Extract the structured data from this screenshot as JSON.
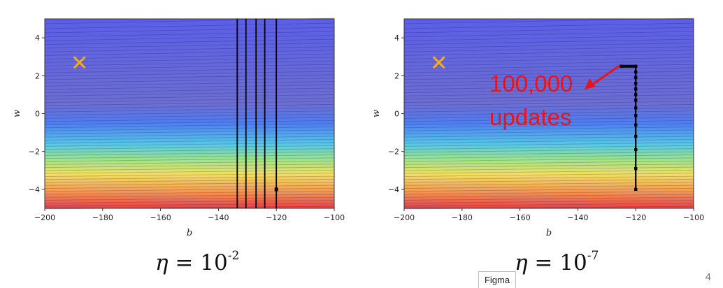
{
  "chart_data": [
    {
      "type": "contour",
      "xlabel": "b",
      "ylabel": "w",
      "xlim": [
        -200,
        -100
      ],
      "ylim": [
        -5,
        5
      ],
      "xticks": [
        -200,
        -180,
        -160,
        -140,
        -120,
        -100
      ],
      "yticks": [
        -4,
        -2,
        0,
        2,
        4
      ],
      "optimum_marker": {
        "b": -188,
        "w": 2.7,
        "symbol": "×",
        "color": "#f5a623"
      },
      "trajectory": {
        "start": {
          "b": -120,
          "w": -4
        },
        "vertical_lines_b": [
          -120,
          -124,
          -127,
          -130.5,
          -133.5
        ]
      },
      "caption": {
        "symbol": "η",
        "text": " = 10",
        "exponent": "-2"
      }
    },
    {
      "type": "contour",
      "xlabel": "b",
      "ylabel": "w",
      "xlim": [
        -200,
        -100
      ],
      "ylim": [
        -5,
        5
      ],
      "xticks": [
        -200,
        -180,
        -160,
        -140,
        -120,
        -100
      ],
      "yticks": [
        -4,
        -2,
        0,
        2,
        4
      ],
      "optimum_marker": {
        "b": -188,
        "w": 2.7,
        "symbol": "×",
        "color": "#f5a623"
      },
      "trajectory": {
        "points": [
          {
            "b": -120,
            "w": -4
          },
          {
            "b": -120,
            "w": -2.9
          },
          {
            "b": -120,
            "w": -1.9
          },
          {
            "b": -120,
            "w": -1.2
          },
          {
            "b": -120,
            "w": -0.6
          },
          {
            "b": -120,
            "w": -0.1
          },
          {
            "b": -120,
            "w": 0.3
          },
          {
            "b": -120,
            "w": 0.7
          },
          {
            "b": -120,
            "w": 1.0
          },
          {
            "b": -120,
            "w": 1.3
          },
          {
            "b": -120,
            "w": 1.6
          },
          {
            "b": -120,
            "w": 1.9
          },
          {
            "b": -120,
            "w": 2.2
          },
          {
            "b": -120,
            "w": 2.5
          },
          {
            "b": -125,
            "w": 2.5
          }
        ]
      },
      "annotation": {
        "lines": [
          "100,000",
          "updates"
        ],
        "color": "#e8141a"
      },
      "caption": {
        "symbol": "η",
        "text": " = 10",
        "exponent": "-7"
      }
    }
  ],
  "page_number": "4",
  "figma_tab": "Figma"
}
